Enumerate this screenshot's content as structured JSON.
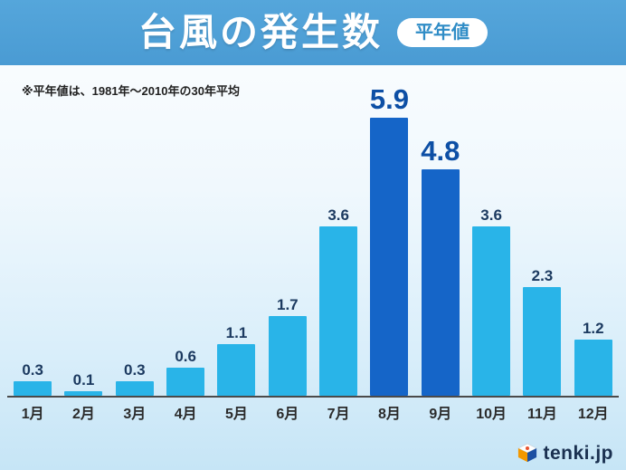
{
  "header": {
    "title": "台風の発生数",
    "badge": "平年値"
  },
  "note": "※平年値は、1981年〜2010年の30年平均",
  "chart_data": {
    "type": "bar",
    "title": "台風の発生数",
    "subtitle": "平年値",
    "note": "※平年値は、1981年〜2010年の30年平均",
    "categories": [
      "1月",
      "2月",
      "3月",
      "4月",
      "5月",
      "6月",
      "7月",
      "8月",
      "9月",
      "10月",
      "11月",
      "12月"
    ],
    "values": [
      0.3,
      0.1,
      0.3,
      0.6,
      1.1,
      1.7,
      3.6,
      5.9,
      4.8,
      3.6,
      2.3,
      1.2
    ],
    "highlight_indices": [
      7,
      8
    ],
    "xlabel": "",
    "ylabel": "",
    "ylim": [
      0,
      6.2
    ],
    "grid": false,
    "legend": false,
    "bar_color": "#29b4e8",
    "highlight_bar_color": "#1565c8",
    "value_label_color": "#1c3a60",
    "highlight_value_label_color": "#0d4fa5"
  },
  "footer": {
    "logo_text": "tenki.jp"
  },
  "colors": {
    "header_bg": "#4a9bd3",
    "badge_text": "#2f8cc6",
    "baseline": "#4a4a4a",
    "month_label": "#2b2b2b"
  }
}
